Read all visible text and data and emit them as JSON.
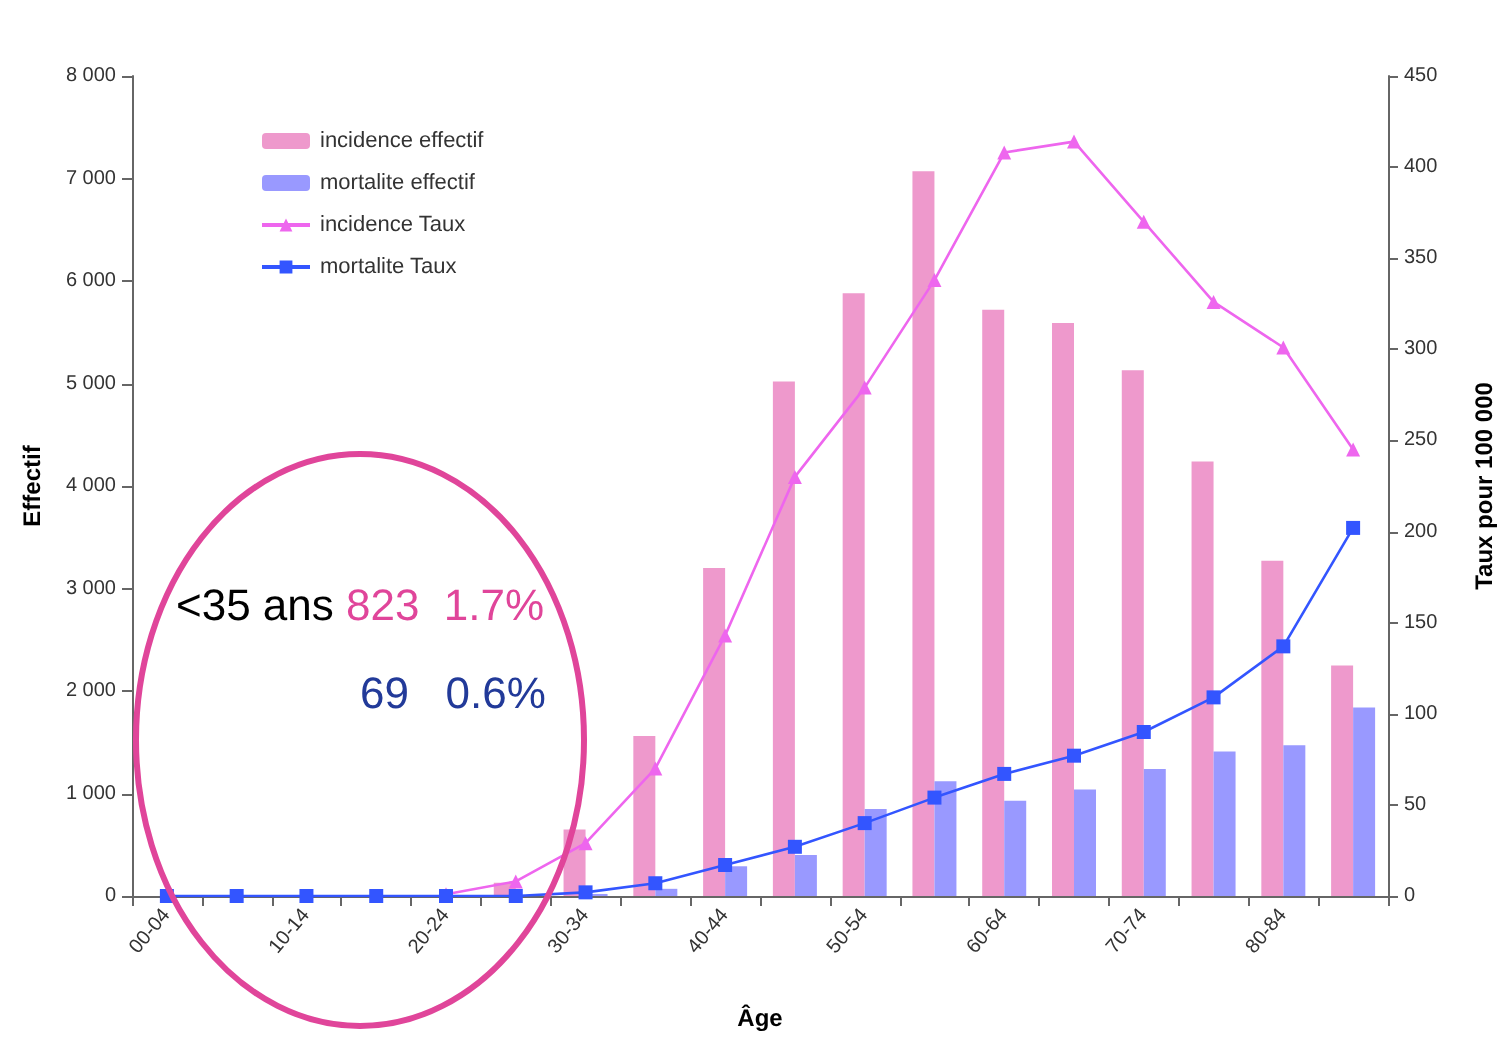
{
  "chart_data": {
    "type": "bar",
    "xlabel": "Âge",
    "ylabel": "Effectif",
    "y2label": "Taux pour 100 000",
    "categories": [
      "00-04",
      null,
      "10-14",
      null,
      "20-24",
      null,
      "30-34",
      null,
      "40-44",
      null,
      "50-54",
      null,
      "60-64",
      null,
      "70-74",
      null,
      "80-84",
      null
    ],
    "series": [
      {
        "name": "incidence effectif",
        "color": "#ee99cc",
        "values": [
          0,
          0,
          0,
          0,
          0,
          130,
          650,
          1560,
          3200,
          5020,
          5880,
          7070,
          5720,
          5590,
          5130,
          4240,
          3270,
          2250
        ]
      },
      {
        "name": "mortalite effectif",
        "color": "#9999ff",
        "values": [
          0,
          0,
          0,
          0,
          0,
          0,
          20,
          70,
          290,
          400,
          850,
          1120,
          930,
          1040,
          1240,
          1410,
          1470,
          1840
        ]
      },
      {
        "name": "incidence Taux",
        "type": "line",
        "axis": "y2",
        "marker": "triangle",
        "color": "#ee66ee",
        "values": [
          null,
          null,
          null,
          null,
          1,
          8,
          29,
          70,
          143,
          230,
          279,
          338,
          408,
          414,
          370,
          326,
          301,
          245
        ]
      },
      {
        "name": "mortalite Taux",
        "type": "line",
        "axis": "y2",
        "marker": "square",
        "color": "#3355ff",
        "values": [
          0,
          0,
          0,
          0,
          0,
          0,
          2,
          7,
          17,
          27,
          40,
          54,
          67,
          77,
          90,
          109,
          137,
          202
        ]
      }
    ],
    "ylim": [
      0,
      8000
    ],
    "yticks": [
      0,
      {
        "value": 1000,
        "label": "1 000"
      },
      {
        "value": 2000,
        "label": "2 000"
      },
      {
        "value": 3000,
        "label": "3 000"
      },
      {
        "value": 4000,
        "label": "4 000"
      },
      {
        "value": 5000,
        "label": "5 000"
      },
      {
        "value": 6000,
        "label": "6 000"
      },
      {
        "value": 7000,
        "label": "7 000"
      },
      {
        "value": 8000,
        "label": "8 000"
      }
    ],
    "y2lim": [
      0,
      450
    ],
    "y2ticks": [
      0,
      50,
      100,
      150,
      200,
      250,
      300,
      350,
      400,
      450
    ],
    "annotations": [
      "<35 ans",
      "823  1.7%",
      "69   0.6%"
    ],
    "legend": "top left",
    "grid": false
  }
}
